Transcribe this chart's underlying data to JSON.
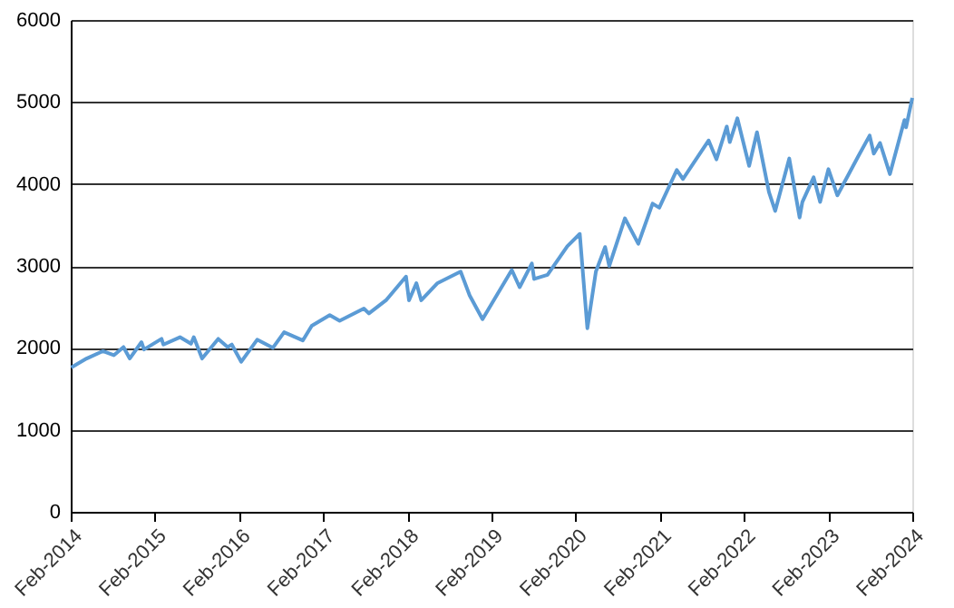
{
  "chart_data": {
    "type": "line",
    "x": [
      "2014-02-03",
      "2014-04-11",
      "2014-06-20",
      "2014-08-07",
      "2014-09-18",
      "2014-10-15",
      "2014-12-05",
      "2014-12-16",
      "2015-03-02",
      "2015-03-10",
      "2015-05-21",
      "2015-07-08",
      "2015-07-20",
      "2015-08-25",
      "2015-11-03",
      "2015-12-14",
      "2016-01-01",
      "2016-02-11",
      "2016-04-20",
      "2016-06-27",
      "2016-08-15",
      "2016-11-04",
      "2016-12-13",
      "2017-03-01",
      "2017-04-13",
      "2017-07-27",
      "2017-08-18",
      "2017-10-31",
      "2018-01-26",
      "2018-02-08",
      "2018-03-12",
      "2018-04-02",
      "2018-06-12",
      "2018-09-20",
      "2018-10-29",
      "2018-12-24",
      "2019-04-30",
      "2019-06-03",
      "2019-07-26",
      "2019-08-05",
      "2019-10-02",
      "2019-12-27",
      "2020-02-19",
      "2020-03-23",
      "2020-04-29",
      "2020-06-08",
      "2020-06-26",
      "2020-09-02",
      "2020-10-30",
      "2020-12-31",
      "2021-01-29",
      "2021-04-15",
      "2021-05-12",
      "2021-08-31",
      "2021-10-04",
      "2021-11-18",
      "2021-12-01",
      "2022-01-03",
      "2022-02-23",
      "2022-03-29",
      "2022-05-20",
      "2022-06-16",
      "2022-08-16",
      "2022-09-30",
      "2022-10-12",
      "2022-11-30",
      "2022-12-28",
      "2023-02-02",
      "2023-03-13",
      "2023-06-12",
      "2023-07-31",
      "2023-08-18",
      "2023-09-14",
      "2023-10-27",
      "2023-12-29",
      "2024-01-05",
      "2024-02-01"
    ],
    "values": [
      1760,
      1870,
      1960,
      1910,
      2010,
      1870,
      2070,
      1980,
      2110,
      2040,
      2130,
      2050,
      2130,
      1870,
      2110,
      2010,
      2040,
      1830,
      2100,
      2000,
      2190,
      2090,
      2270,
      2400,
      2330,
      2480,
      2420,
      2580,
      2870,
      2580,
      2790,
      2580,
      2790,
      2930,
      2640,
      2350,
      2950,
      2740,
      3030,
      2840,
      2890,
      3240,
      3390,
      2240,
      2930,
      3230,
      3000,
      3580,
      3270,
      3760,
      3710,
      4170,
      4060,
      4530,
      4300,
      4700,
      4510,
      4800,
      4220,
      4630,
      3900,
      3670,
      4310,
      3590,
      3780,
      4080,
      3780,
      4180,
      3860,
      4340,
      4590,
      4370,
      4500,
      4120,
      4780,
      4690,
      5050
    ],
    "color": "#5b9bd5",
    "xlim": [
      "2014-02-01",
      "2024-02-01"
    ],
    "xticks": [
      {
        "value": "2014-02-01",
        "label": "Feb-2014"
      },
      {
        "value": "2015-02-01",
        "label": "Feb-2015"
      },
      {
        "value": "2016-02-01",
        "label": "Feb-2016"
      },
      {
        "value": "2017-02-01",
        "label": "Feb-2017"
      },
      {
        "value": "2018-02-01",
        "label": "Feb-2018"
      },
      {
        "value": "2019-02-01",
        "label": "Feb-2019"
      },
      {
        "value": "2020-02-01",
        "label": "Feb-2020"
      },
      {
        "value": "2021-02-01",
        "label": "Feb-2021"
      },
      {
        "value": "2022-02-01",
        "label": "Feb-2022"
      },
      {
        "value": "2023-02-01",
        "label": "Feb-2023"
      },
      {
        "value": "2024-02-01",
        "label": "Feb-2024"
      }
    ],
    "ylim": [
      0,
      6000
    ],
    "yticks": [
      0,
      1000,
      2000,
      3000,
      4000,
      5000,
      6000
    ],
    "grid": "y",
    "marker": "none",
    "line_style": "solid"
  }
}
